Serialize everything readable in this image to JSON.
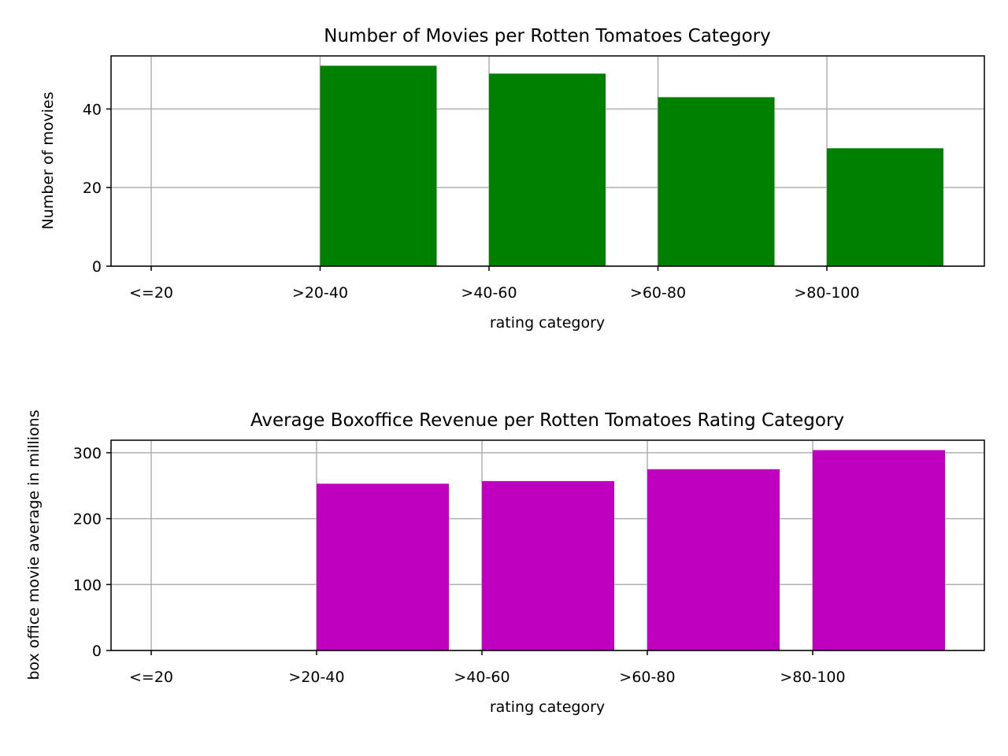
{
  "chart_data": [
    {
      "type": "bar",
      "title": "Number of Movies per Rotten Tomatoes Category",
      "xlabel": "rating category",
      "ylabel": "Number of movies",
      "categories": [
        "<=20",
        ">20-40",
        ">40-60",
        ">60-80",
        ">80-100"
      ],
      "values": [
        0,
        51,
        49,
        43,
        30
      ],
      "ylim": [
        0,
        53.5
      ],
      "yticks": [
        "0",
        "20",
        "40"
      ],
      "grid": true,
      "color": "#008000"
    },
    {
      "type": "bar",
      "title": "Average Boxoffice Revenue per Rotten Tomatoes Rating Category",
      "xlabel": "rating category",
      "ylabel": "box office movie average in millions",
      "categories": [
        "<=20",
        ">20-40",
        ">40-60",
        ">60-80",
        ">80-100"
      ],
      "values": [
        0,
        253,
        257,
        275,
        304
      ],
      "ylim": [
        0,
        319
      ],
      "yticks": [
        "0",
        "100",
        "200",
        "300"
      ],
      "grid": true,
      "color": "#bf00bf"
    }
  ]
}
